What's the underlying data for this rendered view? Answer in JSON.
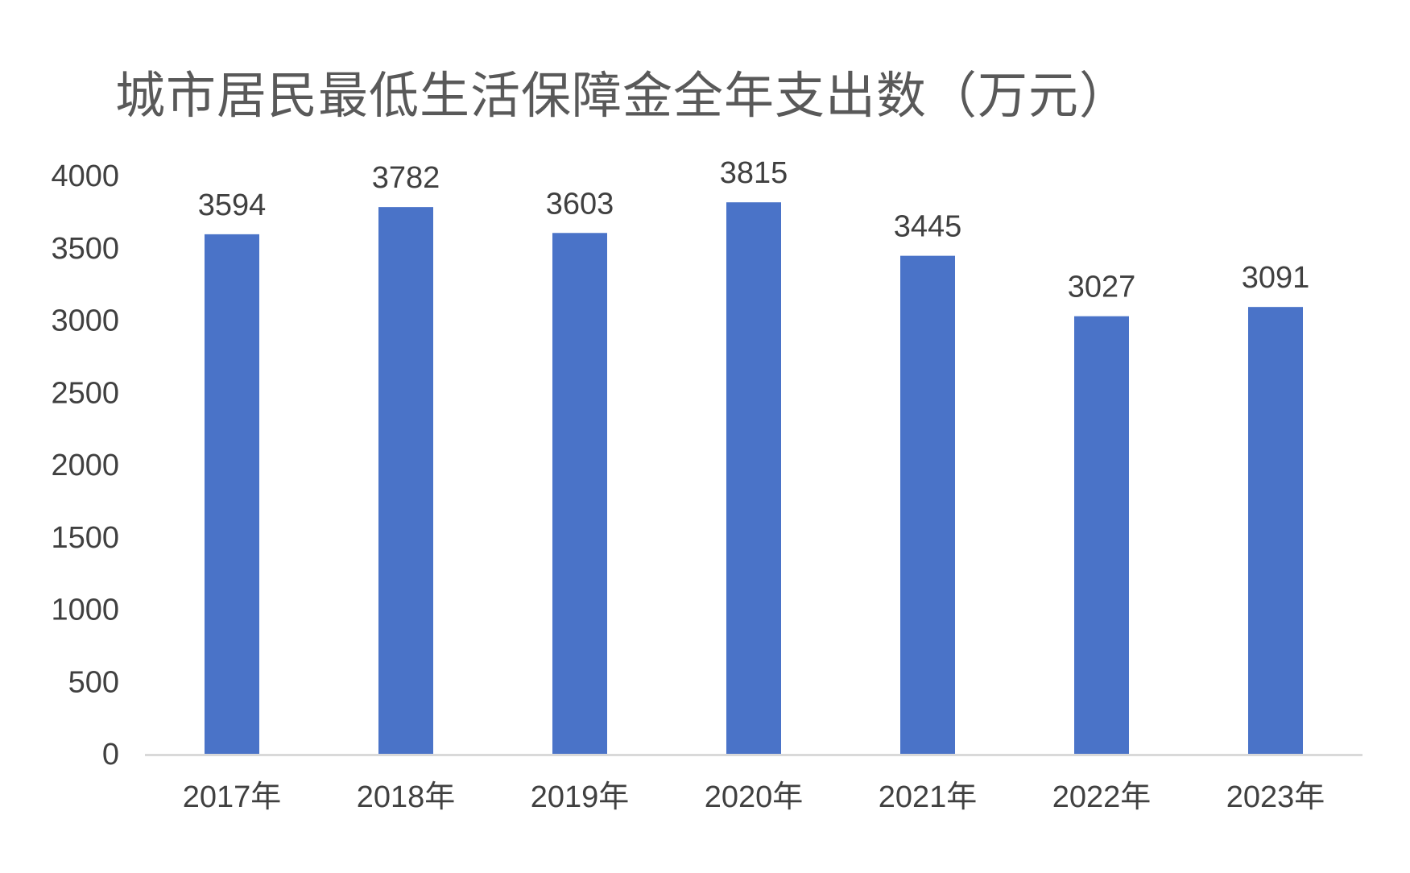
{
  "chart_data": {
    "type": "bar",
    "title": "城市居民最低生活保障金全年支出数（万元）",
    "categories": [
      "2017年",
      "2018年",
      "2019年",
      "2020年",
      "2021年",
      "2022年",
      "2023年"
    ],
    "values": [
      3594,
      3782,
      3603,
      3815,
      3445,
      3027,
      3091
    ],
    "ylim": [
      0,
      4000
    ],
    "yticks": [
      "0",
      "500",
      "1000",
      "1500",
      "2000",
      "2500",
      "3000",
      "3500",
      "4000"
    ],
    "grid": false,
    "legend": "none",
    "data_labels": true,
    "bar_color": "#4a73c8",
    "axis_color": "#d9d9d9",
    "text_color": "#404040"
  }
}
